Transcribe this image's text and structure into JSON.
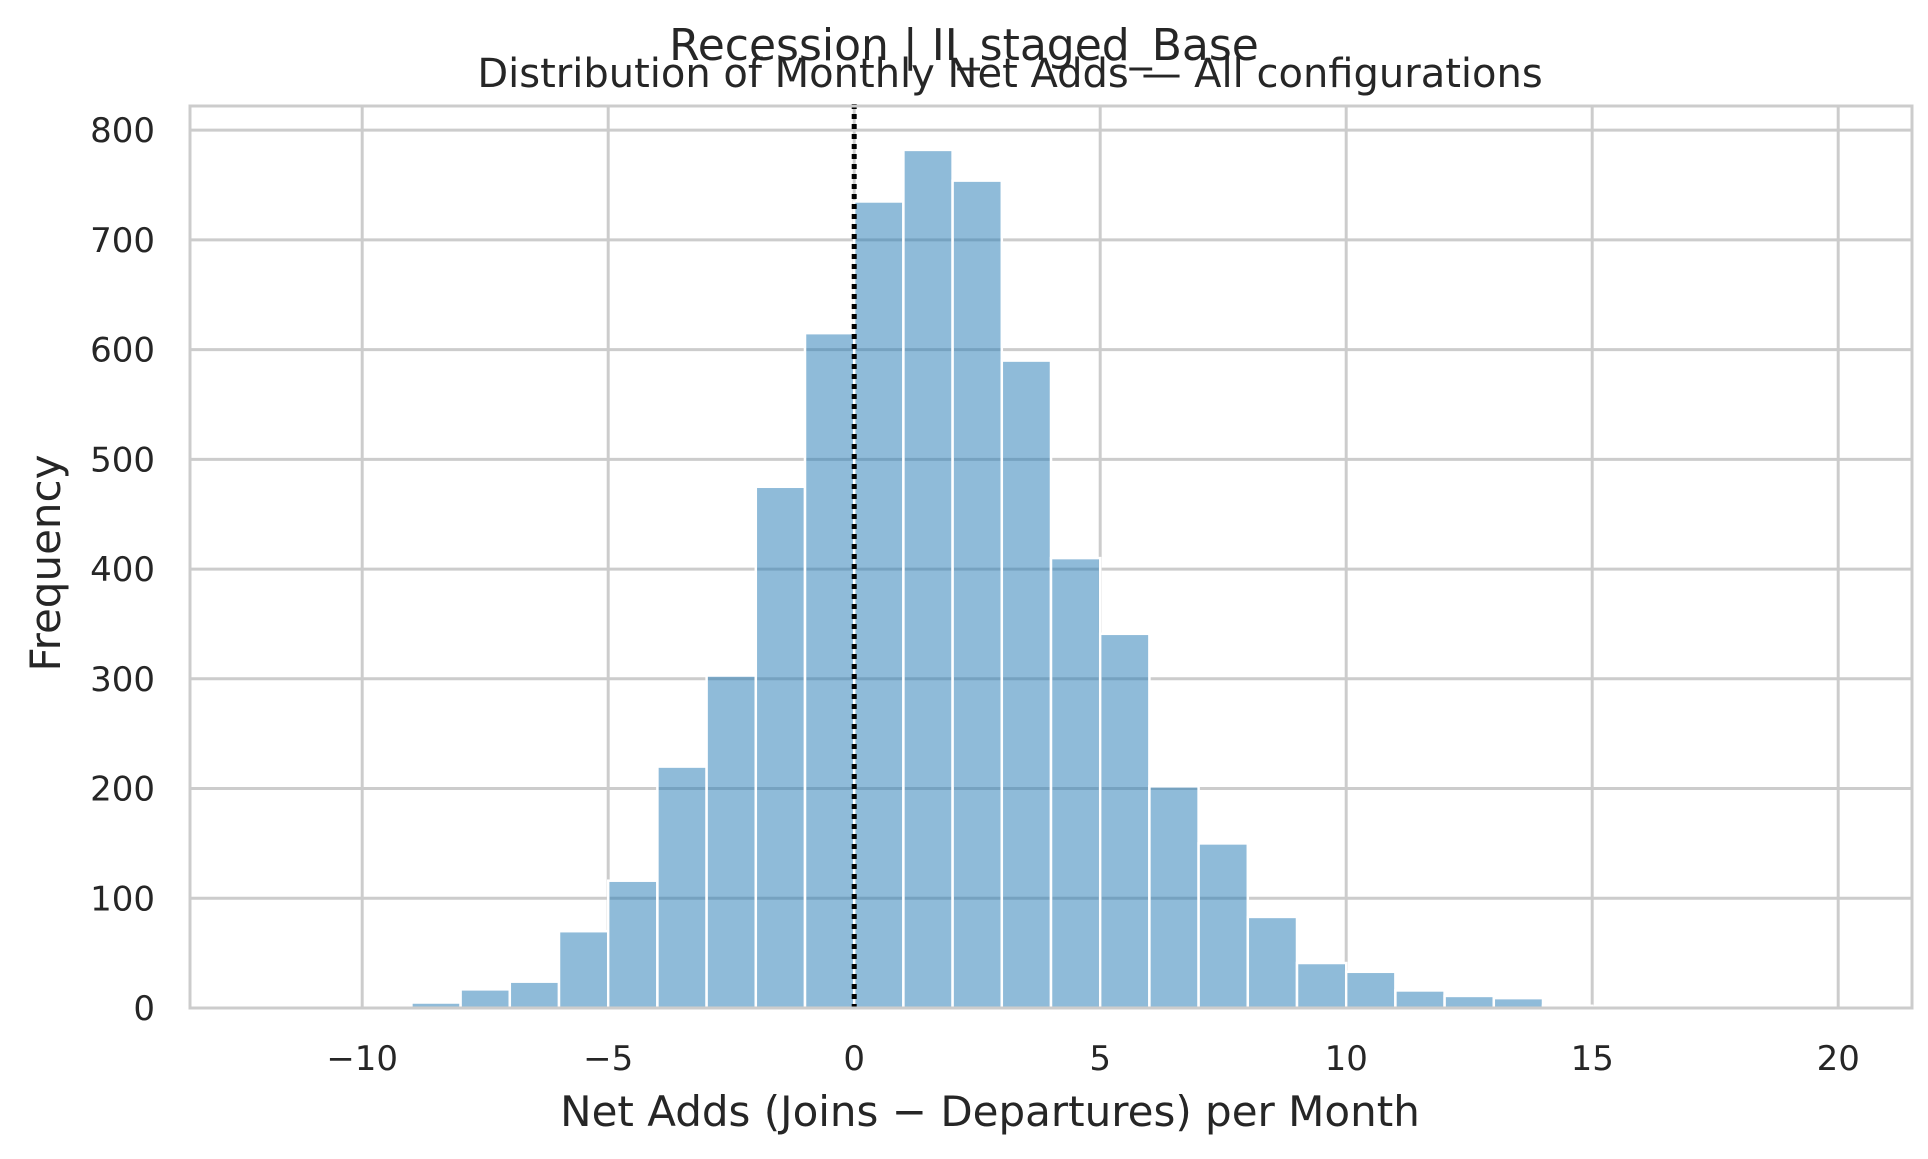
{
  "chart_data": {
    "type": "bar",
    "suptitle": "Recession | II_staged_Base",
    "title": "Distribution of Monthly Net Adds — All configurations",
    "xlabel": "Net Adds (Joins − Departures) per Month",
    "ylabel": "Frequency",
    "xlim": [
      -13.5,
      21.5
    ],
    "ylim": [
      0,
      822
    ],
    "xticks": [
      -10,
      -5,
      0,
      5,
      10,
      15,
      20
    ],
    "xtick_labels": [
      "−10",
      "−5",
      "0",
      "5",
      "10",
      "15",
      "20"
    ],
    "yticks": [
      0,
      100,
      200,
      300,
      400,
      500,
      600,
      700,
      800
    ],
    "ytick_labels": [
      "0",
      "100",
      "200",
      "300",
      "400",
      "500",
      "600",
      "700",
      "800"
    ],
    "grid": true,
    "bin_width": 1,
    "bins": [
      {
        "left": -12,
        "count": 0
      },
      {
        "left": -11,
        "count": 0
      },
      {
        "left": -10,
        "count": 0
      },
      {
        "left": -9,
        "count": 5
      },
      {
        "left": -8,
        "count": 17
      },
      {
        "left": -7,
        "count": 24
      },
      {
        "left": -6,
        "count": 70
      },
      {
        "left": -5,
        "count": 116
      },
      {
        "left": -4,
        "count": 220
      },
      {
        "left": -3,
        "count": 303
      },
      {
        "left": -2,
        "count": 475
      },
      {
        "left": -1,
        "count": 615
      },
      {
        "left": 0,
        "count": 735
      },
      {
        "left": 1,
        "count": 782
      },
      {
        "left": 2,
        "count": 754
      },
      {
        "left": 3,
        "count": 590
      },
      {
        "left": 4,
        "count": 410
      },
      {
        "left": 5,
        "count": 341
      },
      {
        "left": 6,
        "count": 202
      },
      {
        "left": 7,
        "count": 150
      },
      {
        "left": 8,
        "count": 83
      },
      {
        "left": 9,
        "count": 41
      },
      {
        "left": 10,
        "count": 33
      },
      {
        "left": 11,
        "count": 16
      },
      {
        "left": 12,
        "count": 11
      },
      {
        "left": 13,
        "count": 9
      },
      {
        "left": 14,
        "count": 2
      },
      {
        "left": 15,
        "count": 1
      },
      {
        "left": 16,
        "count": 0
      },
      {
        "left": 17,
        "count": 0
      },
      {
        "left": 18,
        "count": 0
      },
      {
        "left": 19,
        "count": 0
      }
    ],
    "reference_line": {
      "x": 0,
      "style": "dotted",
      "color": "#000000"
    },
    "bar_color": "#1f77b4"
  }
}
